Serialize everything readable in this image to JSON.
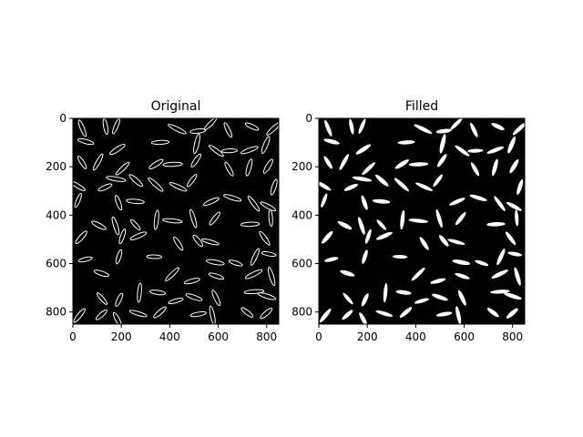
{
  "chart_data": [
    {
      "type": "image",
      "title": "Original",
      "render": "outline",
      "xlim": [
        0,
        850
      ],
      "ylim": [
        850,
        0
      ],
      "xticks": [
        0,
        200,
        400,
        600,
        800
      ],
      "yticks": [
        0,
        200,
        400,
        600,
        800
      ],
      "xtick_labels": [
        "0",
        "200",
        "400",
        "600",
        "800"
      ],
      "ytick_labels": [
        "0",
        "200",
        "400",
        "600",
        "800"
      ]
    },
    {
      "type": "image",
      "title": "Filled",
      "render": "filled",
      "xlim": [
        0,
        850
      ],
      "ylim": [
        850,
        0
      ],
      "xticks": [
        0,
        200,
        400,
        600,
        800
      ],
      "yticks": [
        0,
        200,
        400,
        600,
        800
      ],
      "xtick_labels": [
        "0",
        "200",
        "400",
        "600",
        "800"
      ],
      "ytick_labels": [
        "0",
        "200",
        "400",
        "600",
        "800"
      ]
    }
  ],
  "colors": {
    "background": "#000000",
    "foreground": "#ffffff"
  }
}
